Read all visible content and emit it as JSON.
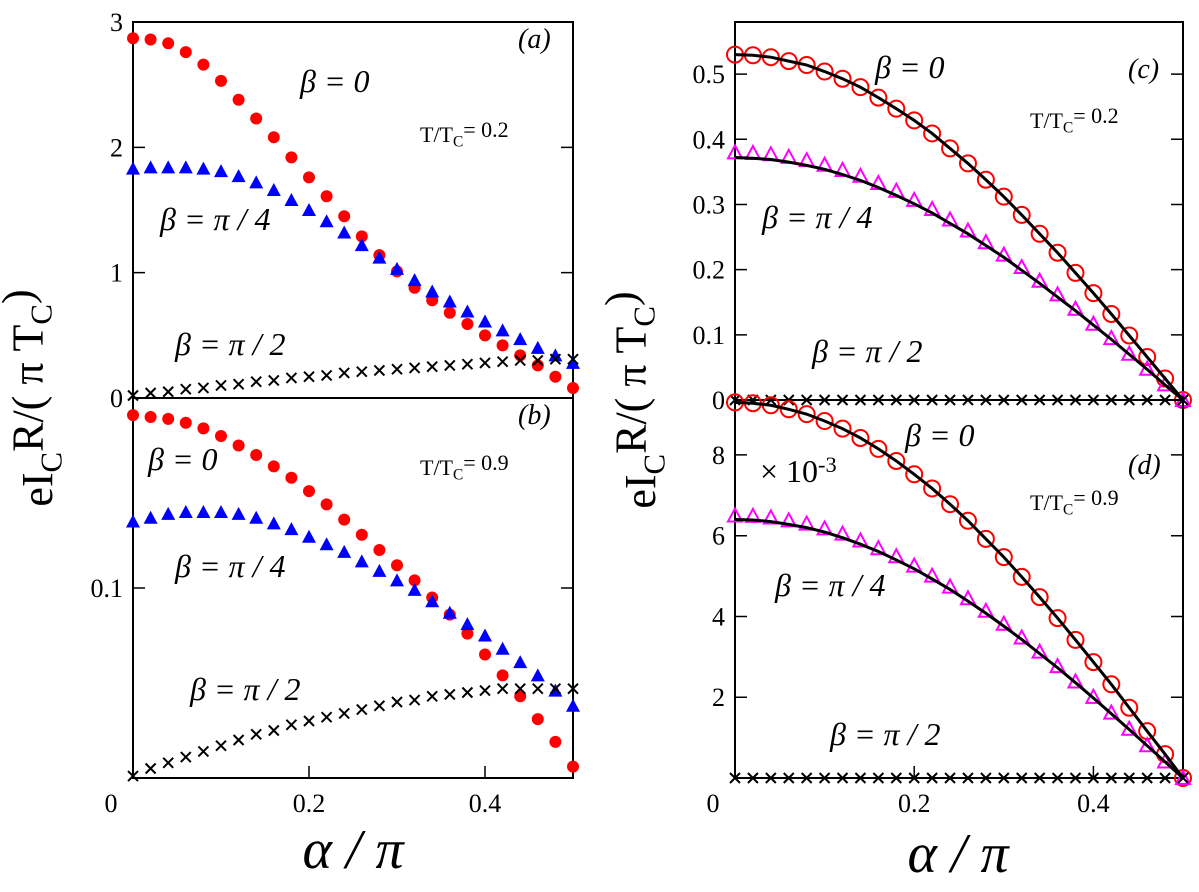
{
  "chart_data": [
    {
      "type": "scatter",
      "label": "(a)",
      "annotation": [
        "T/T",
        "C",
        "= 0.2"
      ],
      "ylabel": [
        "eI",
        "C",
        "R/( π T",
        "C",
        ")"
      ],
      "xlim": [
        0,
        0.5
      ],
      "ylim": [
        0,
        3
      ],
      "yticks": [
        0,
        1,
        2,
        3
      ],
      "x": [
        0,
        0.02,
        0.04,
        0.06,
        0.08,
        0.1,
        0.12,
        0.14,
        0.16,
        0.18,
        0.2,
        0.22,
        0.24,
        0.26,
        0.28,
        0.3,
        0.32,
        0.34,
        0.36,
        0.38,
        0.4,
        0.42,
        0.44,
        0.46,
        0.48,
        0.5
      ],
      "series": [
        {
          "name": "β = 0",
          "color": "#ff0000",
          "marker": "circle",
          "values": [
            2.87,
            2.86,
            2.83,
            2.76,
            2.66,
            2.53,
            2.38,
            2.23,
            2.08,
            1.92,
            1.76,
            1.61,
            1.45,
            1.29,
            1.14,
            1.01,
            0.88,
            0.78,
            0.68,
            0.59,
            0.5,
            0.42,
            0.34,
            0.26,
            0.17,
            0.08
          ]
        },
        {
          "name": "β = π / 4",
          "color": "#0000ff",
          "marker": "triangle",
          "values": [
            1.83,
            1.84,
            1.84,
            1.84,
            1.83,
            1.81,
            1.77,
            1.72,
            1.66,
            1.58,
            1.5,
            1.41,
            1.32,
            1.22,
            1.12,
            1.03,
            0.94,
            0.85,
            0.77,
            0.69,
            0.61,
            0.54,
            0.47,
            0.4,
            0.34,
            0.28
          ]
        },
        {
          "name": "β = π / 2",
          "color": "#000000",
          "marker": "x",
          "values": [
            0.02,
            0.04,
            0.05,
            0.07,
            0.08,
            0.1,
            0.11,
            0.13,
            0.14,
            0.16,
            0.17,
            0.18,
            0.2,
            0.21,
            0.22,
            0.23,
            0.24,
            0.25,
            0.26,
            0.27,
            0.28,
            0.29,
            0.3,
            0.3,
            0.31,
            0.31
          ]
        }
      ]
    },
    {
      "type": "scatter",
      "label": "(b)",
      "annotation": [
        "T/T",
        "C",
        "= 0.9"
      ],
      "xlabel": "α / π",
      "xlim": [
        0,
        0.5
      ],
      "xticks": [
        0,
        0.2,
        0.4
      ],
      "ylim": [
        0,
        0.2
      ],
      "yticks": [
        0.1
      ],
      "x": [
        0,
        0.02,
        0.04,
        0.06,
        0.08,
        0.1,
        0.12,
        0.14,
        0.16,
        0.18,
        0.2,
        0.22,
        0.24,
        0.26,
        0.28,
        0.3,
        0.32,
        0.34,
        0.36,
        0.38,
        0.4,
        0.42,
        0.44,
        0.46,
        0.48,
        0.5
      ],
      "series": [
        {
          "name": "β = 0",
          "color": "#ff0000",
          "marker": "circle",
          "values": [
            0.191,
            0.19,
            0.189,
            0.187,
            0.184,
            0.18,
            0.175,
            0.17,
            0.164,
            0.158,
            0.151,
            0.144,
            0.136,
            0.128,
            0.12,
            0.112,
            0.104,
            0.095,
            0.086,
            0.076,
            0.065,
            0.054,
            0.043,
            0.031,
            0.019,
            0.006
          ]
        },
        {
          "name": "β = π / 4",
          "color": "#0000ff",
          "marker": "triangle",
          "values": [
            0.135,
            0.137,
            0.139,
            0.14,
            0.14,
            0.14,
            0.139,
            0.137,
            0.134,
            0.131,
            0.127,
            0.123,
            0.119,
            0.114,
            0.109,
            0.104,
            0.099,
            0.093,
            0.087,
            0.081,
            0.075,
            0.068,
            0.061,
            0.054,
            0.046,
            0.038
          ]
        },
        {
          "name": "β = π / 2",
          "color": "#000000",
          "marker": "x",
          "values": [
            0.001,
            0.005,
            0.008,
            0.011,
            0.014,
            0.017,
            0.02,
            0.023,
            0.025,
            0.028,
            0.03,
            0.032,
            0.034,
            0.036,
            0.038,
            0.04,
            0.041,
            0.043,
            0.044,
            0.045,
            0.046,
            0.047,
            0.047,
            0.047,
            0.047,
            0.047
          ]
        }
      ]
    },
    {
      "type": "scatter",
      "label": "(c)",
      "annotation": [
        "T/T",
        "C",
        "= 0.2"
      ],
      "ylabel": [
        "eI",
        "C",
        "R/( π T",
        "C",
        ")"
      ],
      "xlim": [
        0,
        0.5
      ],
      "ylim": [
        0,
        0.58
      ],
      "yticks": [
        0,
        0.1,
        0.2,
        0.3,
        0.4,
        0.5
      ],
      "x": [
        0,
        0.02,
        0.04,
        0.06,
        0.08,
        0.1,
        0.12,
        0.14,
        0.16,
        0.18,
        0.2,
        0.22,
        0.24,
        0.26,
        0.28,
        0.3,
        0.32,
        0.34,
        0.36,
        0.38,
        0.4,
        0.42,
        0.44,
        0.46,
        0.48,
        0.5
      ],
      "series": [
        {
          "name": "β = 0",
          "color": "#ff0000",
          "marker": "open-circle",
          "values": [
            0.53,
            0.529,
            0.526,
            0.52,
            0.514,
            0.504,
            0.493,
            0.48,
            0.464,
            0.447,
            0.429,
            0.409,
            0.386,
            0.363,
            0.338,
            0.312,
            0.284,
            0.255,
            0.226,
            0.195,
            0.164,
            0.132,
            0.099,
            0.066,
            0.033,
            0
          ]
        },
        {
          "name": "β = π / 4",
          "color": "#ff00ff",
          "marker": "open-triangle",
          "values": [
            0.38,
            0.379,
            0.377,
            0.373,
            0.368,
            0.361,
            0.353,
            0.344,
            0.333,
            0.321,
            0.307,
            0.293,
            0.277,
            0.26,
            0.242,
            0.223,
            0.204,
            0.183,
            0.162,
            0.14,
            0.117,
            0.095,
            0.071,
            0.048,
            0.024,
            0
          ]
        },
        {
          "name": "β = π / 2",
          "color": "#000000",
          "marker": "x",
          "values": [
            0,
            0,
            0,
            0,
            0,
            0,
            0,
            0,
            0,
            0,
            0,
            0,
            0,
            0,
            0,
            0,
            0,
            0,
            0,
            0,
            0,
            0,
            0,
            0,
            0,
            0
          ]
        },
        {
          "color": "#000000",
          "marker": "line",
          "values": [
            0.53,
            0.529,
            0.526,
            0.52,
            0.514,
            0.504,
            0.493,
            0.48,
            0.464,
            0.447,
            0.429,
            0.409,
            0.386,
            0.363,
            0.338,
            0.312,
            0.284,
            0.255,
            0.226,
            0.195,
            0.164,
            0.132,
            0.099,
            0.066,
            0.033,
            0
          ]
        },
        {
          "color": "#000000",
          "marker": "line",
          "values": [
            0.372,
            0.371,
            0.369,
            0.365,
            0.36,
            0.354,
            0.346,
            0.337,
            0.326,
            0.314,
            0.301,
            0.287,
            0.271,
            0.255,
            0.237,
            0.219,
            0.199,
            0.179,
            0.158,
            0.137,
            0.115,
            0.093,
            0.07,
            0.047,
            0.023,
            0
          ]
        }
      ]
    },
    {
      "type": "scatter",
      "label": "(d)",
      "annotation": [
        "T/T",
        "C",
        "= 0.9"
      ],
      "multiplier": [
        "× 10",
        "-3"
      ],
      "xlabel": "α / π",
      "xlim": [
        0,
        0.5
      ],
      "xticks": [
        0,
        0.2,
        0.4
      ],
      "ylim": [
        0,
        9.36
      ],
      "yticks": [
        2,
        4,
        6,
        8
      ],
      "x": [
        0,
        0.02,
        0.04,
        0.06,
        0.08,
        0.1,
        0.12,
        0.14,
        0.16,
        0.18,
        0.2,
        0.22,
        0.24,
        0.26,
        0.28,
        0.3,
        0.32,
        0.34,
        0.36,
        0.38,
        0.4,
        0.42,
        0.44,
        0.46,
        0.48,
        0.5
      ],
      "series": [
        {
          "name": "β = 0",
          "color": "#ff0000",
          "marker": "open-circle",
          "values": [
            9.3,
            9.28,
            9.23,
            9.13,
            9.01,
            8.84,
            8.65,
            8.42,
            8.15,
            7.85,
            7.52,
            7.17,
            6.78,
            6.37,
            5.92,
            5.47,
            4.98,
            4.48,
            3.96,
            3.42,
            2.87,
            2.32,
            1.74,
            1.16,
            0.59,
            0
          ]
        },
        {
          "name": "β = π / 4",
          "color": "#ff00ff",
          "marker": "open-triangle",
          "values": [
            6.5,
            6.49,
            6.45,
            6.38,
            6.3,
            6.18,
            6.05,
            5.88,
            5.69,
            5.49,
            5.26,
            5.01,
            4.74,
            4.45,
            4.14,
            3.82,
            3.48,
            3.13,
            2.77,
            2.39,
            2.01,
            1.62,
            1.22,
            0.81,
            0.41,
            0
          ]
        },
        {
          "name": "β = π / 2",
          "color": "#000000",
          "marker": "x",
          "values": [
            0,
            0,
            0,
            0,
            0,
            0,
            0,
            0,
            0,
            0,
            0,
            0,
            0,
            0,
            0,
            0,
            0,
            0,
            0,
            0,
            0,
            0,
            0,
            0,
            0,
            0
          ]
        },
        {
          "color": "#000000",
          "marker": "line",
          "values": [
            9.3,
            9.28,
            9.23,
            9.13,
            9.01,
            8.84,
            8.65,
            8.42,
            8.15,
            7.85,
            7.52,
            7.17,
            6.78,
            6.37,
            5.92,
            5.47,
            4.98,
            4.48,
            3.96,
            3.42,
            2.87,
            2.32,
            1.74,
            1.16,
            0.59,
            0
          ]
        },
        {
          "color": "#000000",
          "marker": "line",
          "values": [
            6.4,
            6.39,
            6.35,
            6.28,
            6.2,
            6.09,
            5.95,
            5.79,
            5.61,
            5.4,
            5.18,
            4.93,
            4.67,
            4.38,
            4.08,
            3.76,
            3.43,
            3.08,
            2.73,
            2.36,
            1.98,
            1.59,
            1.2,
            0.8,
            0.4,
            0
          ]
        }
      ]
    }
  ]
}
